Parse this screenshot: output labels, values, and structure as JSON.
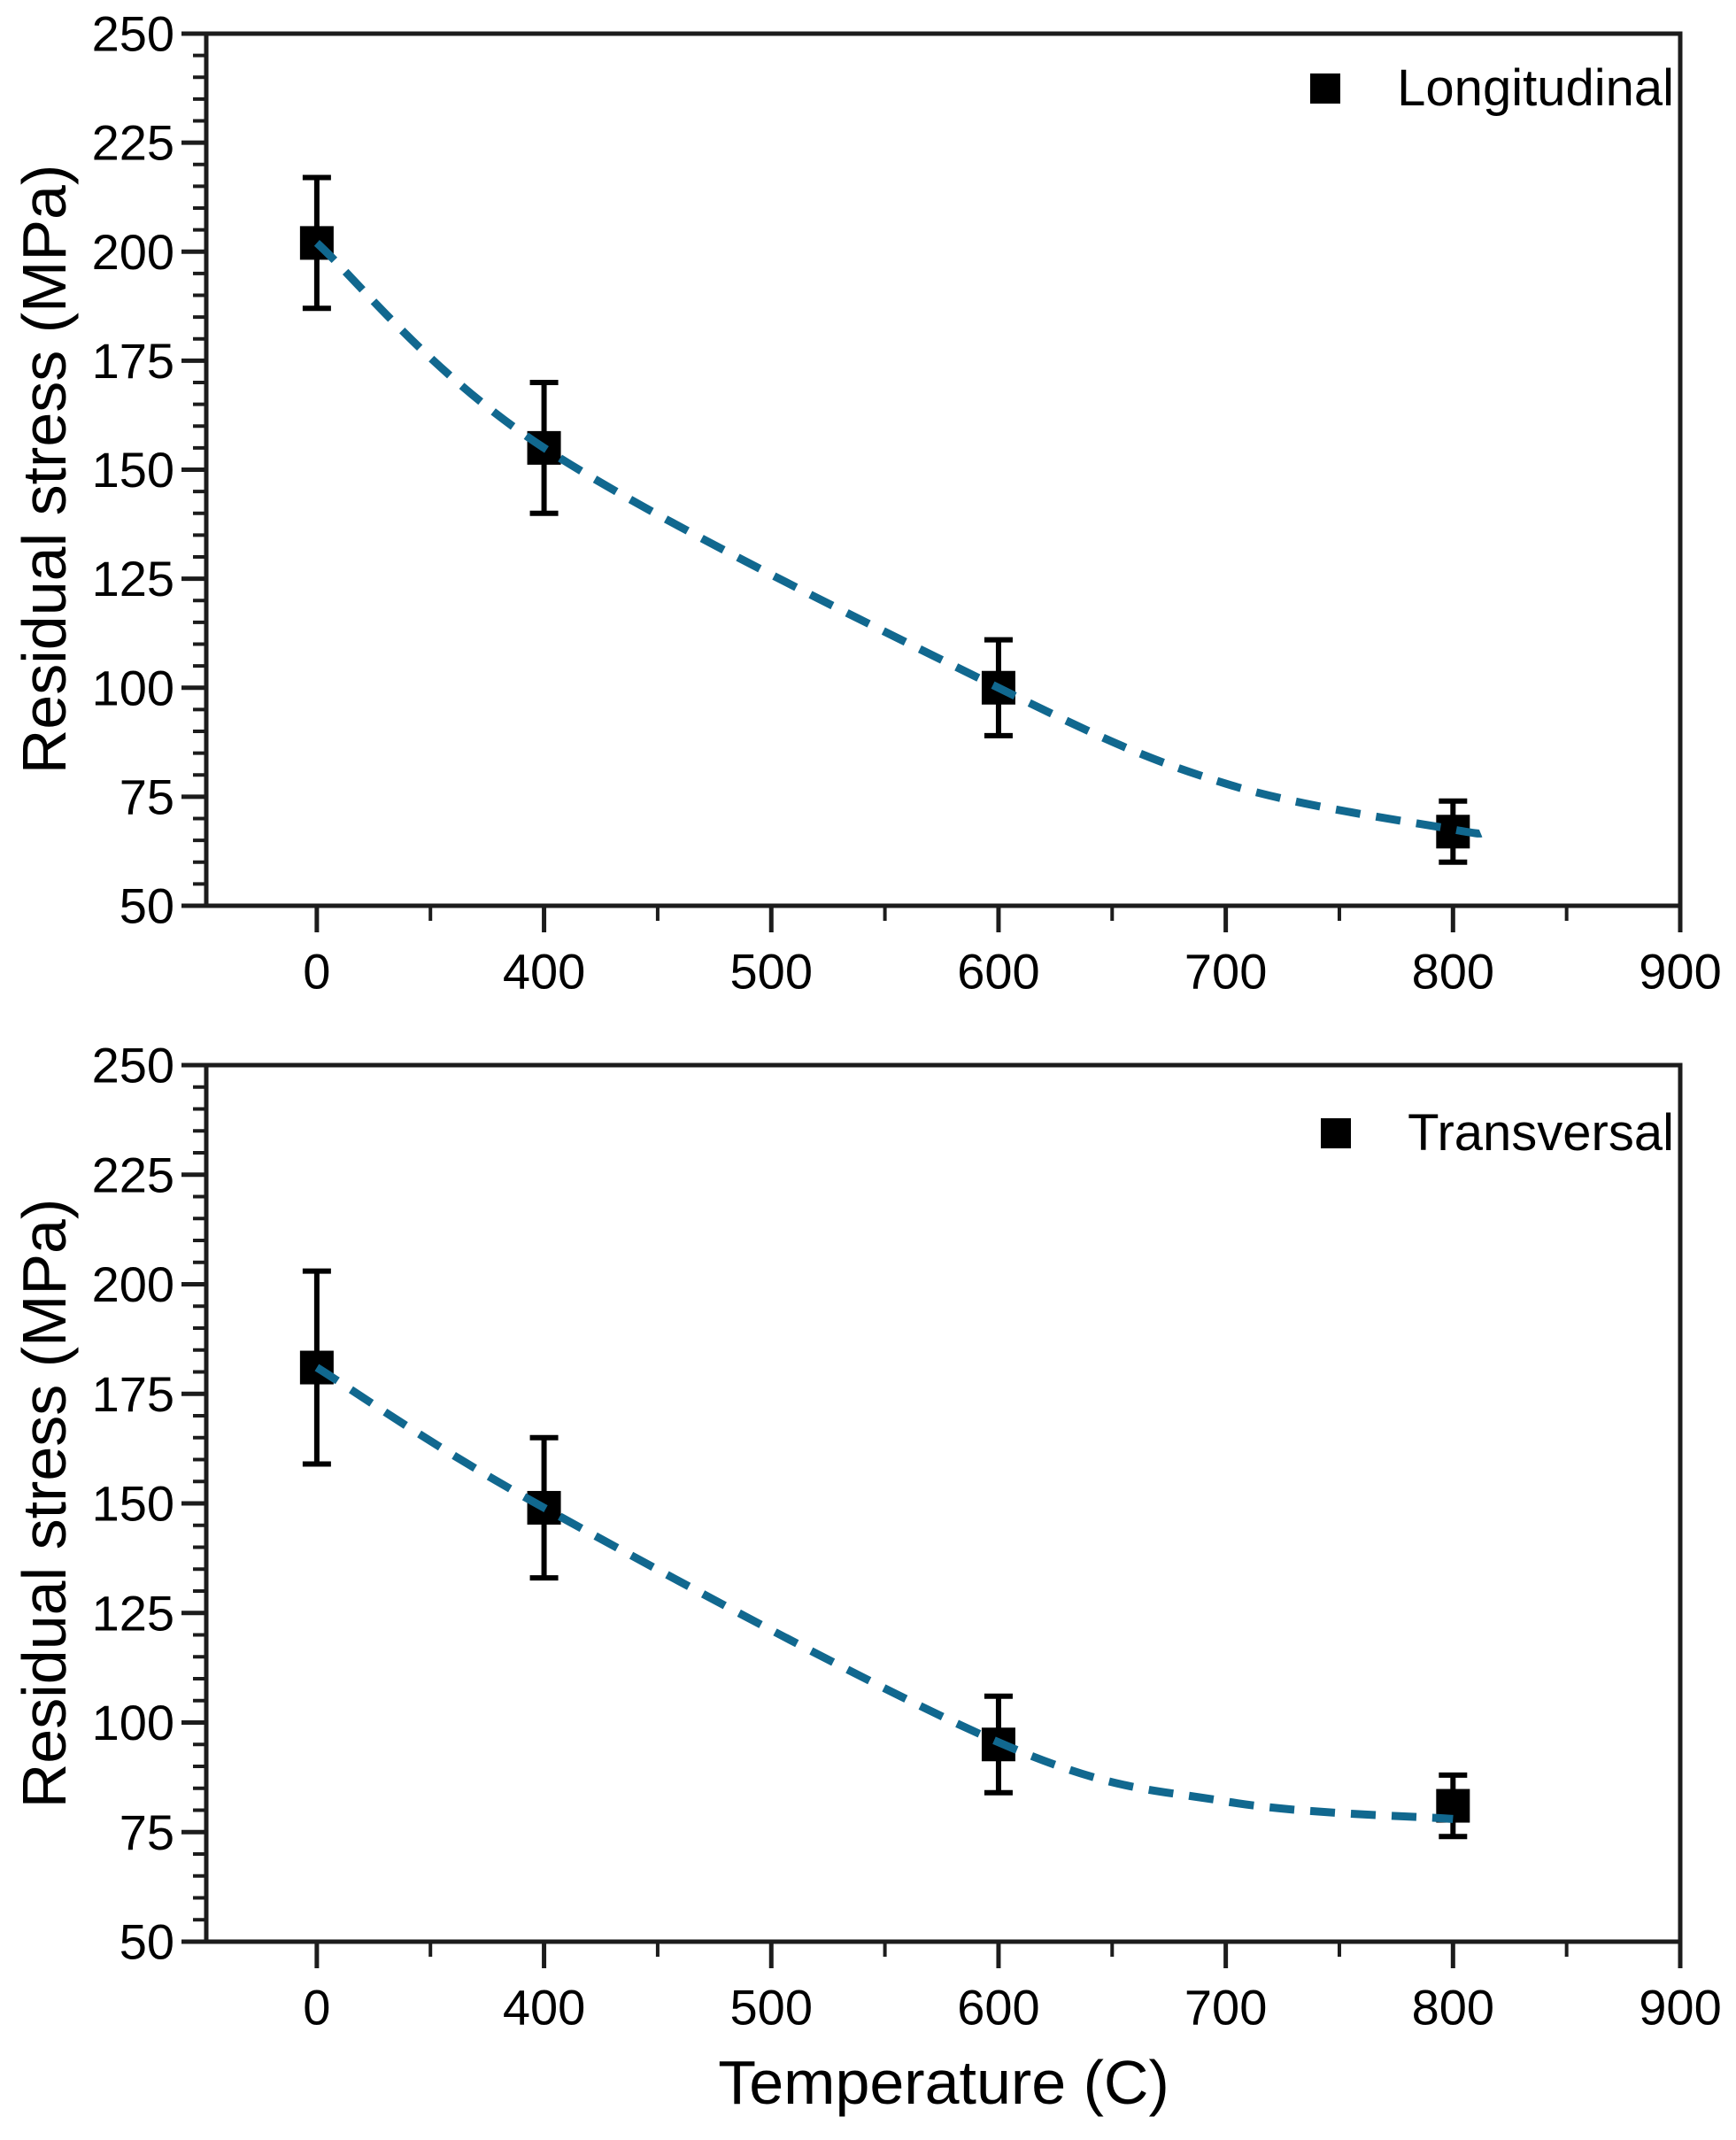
{
  "figure": {
    "background": "#ffffff",
    "axis_color": "#1c1c1c",
    "text_color": "#000000",
    "curve_color": "#11688F",
    "marker_color": "#000000",
    "marker_shape": "filled-square",
    "trend_line_style": "dashed",
    "xlabel": "Temperature (C)",
    "ylabel": "Residual stress (MPa)"
  },
  "chart_data": [
    {
      "type": "scatter",
      "legend": "Longitudinal",
      "legend_position": "top-right",
      "ylabel": "Residual stress (MPa)",
      "xlabel": "",
      "grid": false,
      "x_scale": "evenly-spaced-ticks",
      "x_tick_values": [
        0,
        400,
        500,
        600,
        700,
        800,
        900
      ],
      "x_tick_labels": [
        "0",
        "400",
        "500",
        "600",
        "700",
        "800",
        "900"
      ],
      "y_ticks": [
        250,
        225,
        200,
        175,
        150,
        125,
        100,
        75,
        50
      ],
      "ylim": [
        50,
        250
      ],
      "y_minor_step": 5,
      "series": [
        {
          "name": "Longitudinal",
          "x": [
            0,
            400,
            600,
            800
          ],
          "y": [
            202,
            155,
            100,
            67
          ],
          "y_err": [
            15,
            15,
            11,
            7
          ]
        }
      ],
      "trend_curve": [
        [
          0,
          202
        ],
        [
          400,
          155
        ],
        [
          600,
          100
        ],
        [
          700,
          78
        ],
        [
          800,
          67.5
        ],
        [
          812,
          67
        ]
      ]
    },
    {
      "type": "scatter",
      "legend": "Transversal",
      "legend_position": "top-right",
      "ylabel": "Residual stress (MPa)",
      "xlabel": "Temperature (C)",
      "grid": false,
      "x_scale": "evenly-spaced-ticks",
      "x_tick_values": [
        0,
        400,
        500,
        600,
        700,
        800,
        900
      ],
      "x_tick_labels": [
        "0",
        "400",
        "500",
        "600",
        "700",
        "800",
        "900"
      ],
      "y_ticks": [
        250,
        225,
        200,
        175,
        150,
        125,
        100,
        75,
        50
      ],
      "ylim": [
        50,
        250
      ],
      "y_minor_step": 5,
      "series": [
        {
          "name": "Transversal",
          "x": [
            0,
            400,
            600,
            800
          ],
          "y": [
            181,
            149,
            95,
            81
          ],
          "y_err": [
            22,
            16,
            11,
            7
          ]
        }
      ],
      "trend_curve": [
        [
          0,
          181
        ],
        [
          400,
          149
        ],
        [
          600,
          95.5
        ],
        [
          700,
          82
        ],
        [
          800,
          78
        ]
      ]
    }
  ]
}
